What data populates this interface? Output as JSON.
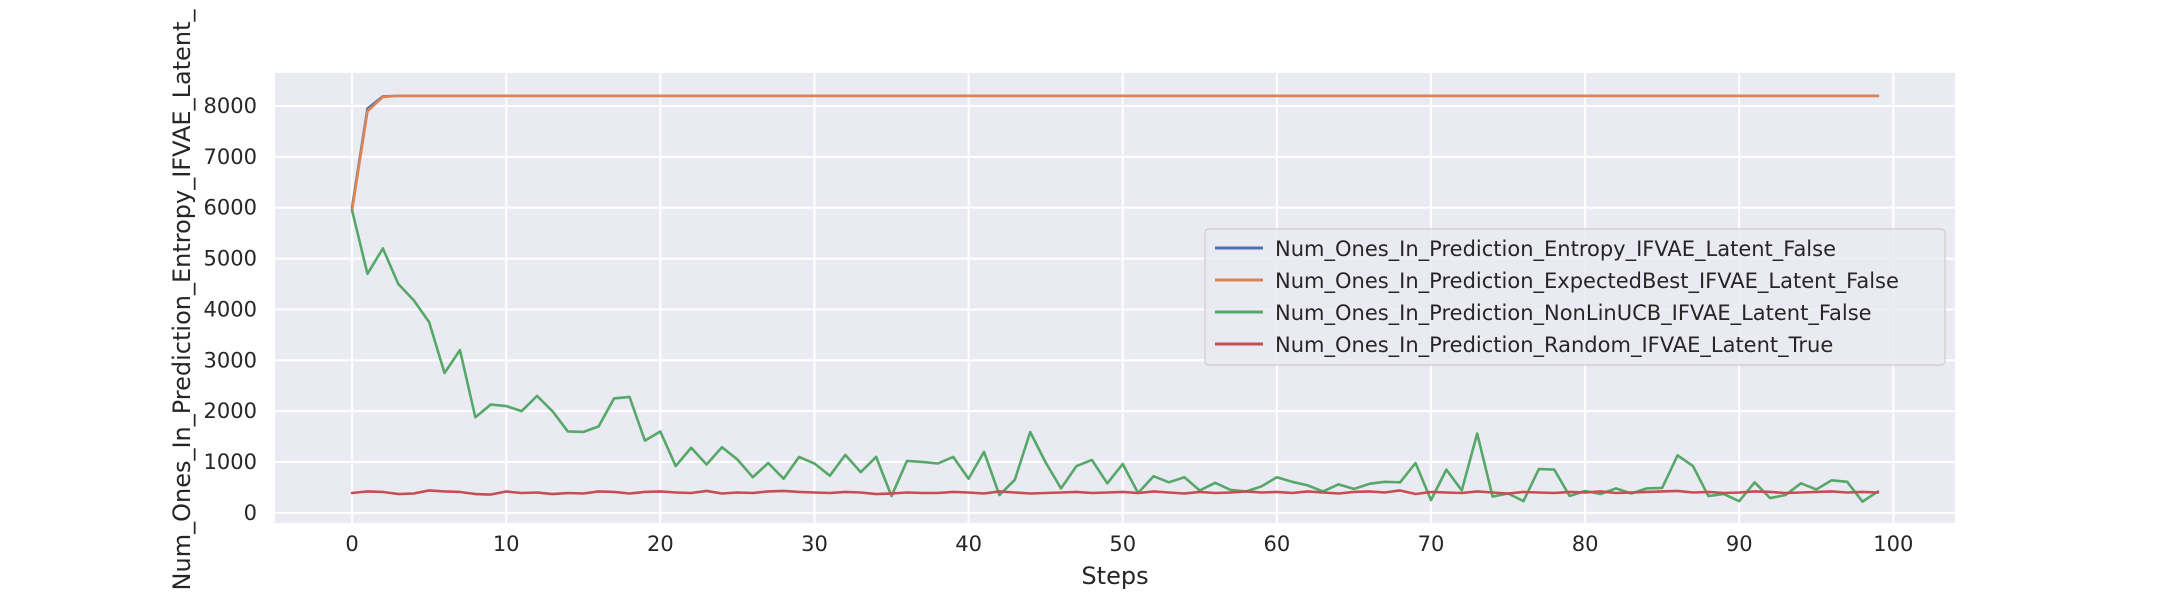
{
  "chart_data": {
    "type": "line",
    "title": "",
    "xlabel": "Steps",
    "ylabel": "Num_Ones_In_Prediction_Entropy_IFVAE_Latent_",
    "xlim": [
      -5,
      104
    ],
    "ylim": [
      -200,
      8650
    ],
    "xticks": [
      0,
      10,
      20,
      30,
      40,
      50,
      60,
      70,
      80,
      90,
      100
    ],
    "yticks": [
      0,
      1000,
      2000,
      3000,
      4000,
      5000,
      6000,
      7000,
      8000
    ],
    "grid": true,
    "legend_position": "center-right",
    "series": [
      {
        "name": "Num_Ones_In_Prediction_Entropy_IFVAE_Latent_False",
        "color": "#4c72b0",
        "x_start": 0,
        "values": [
          6000,
          7950,
          8190,
          8200,
          8200,
          8200,
          8200,
          8200,
          8200,
          8200,
          8200,
          8200,
          8200,
          8200,
          8200,
          8200,
          8200,
          8200,
          8200,
          8200,
          8200,
          8200,
          8200,
          8200,
          8200,
          8200,
          8200,
          8200,
          8200,
          8200,
          8200,
          8200,
          8200,
          8200,
          8200,
          8200,
          8200,
          8200,
          8200,
          8200,
          8200,
          8200,
          8200,
          8200,
          8200,
          8200,
          8200,
          8200,
          8200,
          8200,
          8200,
          8200,
          8200,
          8200,
          8200,
          8200,
          8200,
          8200,
          8200,
          8200,
          8200,
          8200,
          8200,
          8200,
          8200,
          8200,
          8200,
          8200,
          8200,
          8200,
          8200,
          8200,
          8200,
          8200,
          8200,
          8200,
          8200,
          8200,
          8200,
          8200,
          8200,
          8200,
          8200,
          8200,
          8200,
          8200,
          8200,
          8200,
          8200,
          8200,
          8200,
          8200,
          8200,
          8200,
          8200,
          8200,
          8200,
          8200,
          8200,
          8200
        ]
      },
      {
        "name": "Num_Ones_In_Prediction_ExpectedBest_IFVAE_Latent_False",
        "color": "#dd8452",
        "x_start": 0,
        "values": [
          5950,
          7900,
          8180,
          8200,
          8200,
          8200,
          8200,
          8200,
          8200,
          8200,
          8200,
          8200,
          8200,
          8200,
          8200,
          8200,
          8200,
          8200,
          8200,
          8200,
          8200,
          8200,
          8200,
          8200,
          8200,
          8200,
          8200,
          8200,
          8200,
          8200,
          8200,
          8200,
          8200,
          8200,
          8200,
          8200,
          8200,
          8200,
          8200,
          8200,
          8200,
          8200,
          8200,
          8200,
          8200,
          8200,
          8200,
          8200,
          8200,
          8200,
          8200,
          8200,
          8200,
          8200,
          8200,
          8200,
          8200,
          8200,
          8200,
          8200,
          8200,
          8200,
          8200,
          8200,
          8200,
          8200,
          8200,
          8200,
          8200,
          8200,
          8200,
          8200,
          8200,
          8200,
          8200,
          8200,
          8200,
          8200,
          8200,
          8200,
          8200,
          8200,
          8200,
          8200,
          8200,
          8200,
          8200,
          8200,
          8200,
          8200,
          8200,
          8200,
          8200,
          8200,
          8200,
          8200,
          8200,
          8200,
          8200,
          8200
        ]
      },
      {
        "name": "Num_Ones_In_Prediction_NonLinUCB_IFVAE_Latent_False",
        "color": "#55a868",
        "x_start": 0,
        "values": [
          5950,
          4700,
          5200,
          4500,
          4180,
          3750,
          2750,
          3200,
          1880,
          2130,
          2100,
          2000,
          2300,
          2000,
          1600,
          1590,
          1700,
          2250,
          2280,
          1420,
          1600,
          920,
          1280,
          950,
          1290,
          1050,
          700,
          980,
          670,
          1100,
          970,
          730,
          1140,
          800,
          1100,
          330,
          1020,
          1000,
          970,
          1100,
          670,
          1200,
          350,
          650,
          1590,
          990,
          480,
          920,
          1040,
          580,
          960,
          390,
          720,
          600,
          700,
          440,
          590,
          450,
          420,
          520,
          700,
          610,
          540,
          420,
          560,
          470,
          570,
          610,
          600,
          980,
          250,
          850,
          440,
          1560,
          320,
          380,
          230,
          860,
          850,
          330,
          430,
          370,
          480,
          380,
          480,
          490,
          1130,
          920,
          330,
          370,
          230,
          600,
          290,
          350,
          580,
          460,
          640,
          610,
          220,
          420
        ]
      },
      {
        "name": "Num_Ones_In_Prediction_Random_IFVAE_Latent_True",
        "color": "#c44e52",
        "x_start": 0,
        "values": [
          390,
          420,
          410,
          370,
          380,
          440,
          420,
          410,
          370,
          360,
          420,
          390,
          400,
          370,
          390,
          380,
          420,
          410,
          380,
          410,
          420,
          400,
          390,
          430,
          380,
          400,
          390,
          420,
          430,
          410,
          400,
          390,
          410,
          400,
          370,
          380,
          400,
          390,
          390,
          410,
          400,
          380,
          420,
          400,
          380,
          390,
          400,
          410,
          390,
          400,
          410,
          390,
          420,
          400,
          380,
          410,
          390,
          400,
          420,
          400,
          410,
          390,
          420,
          400,
          380,
          410,
          420,
          400,
          440,
          370,
          410,
          400,
          390,
          420,
          400,
          380,
          410,
          400,
          390,
          410,
          400,
          420,
          390,
          400,
          410,
          420,
          430,
          400,
          410,
          390,
          400,
          420,
          410,
          390,
          400,
          410,
          420,
          400,
          410,
          400
        ]
      }
    ]
  }
}
